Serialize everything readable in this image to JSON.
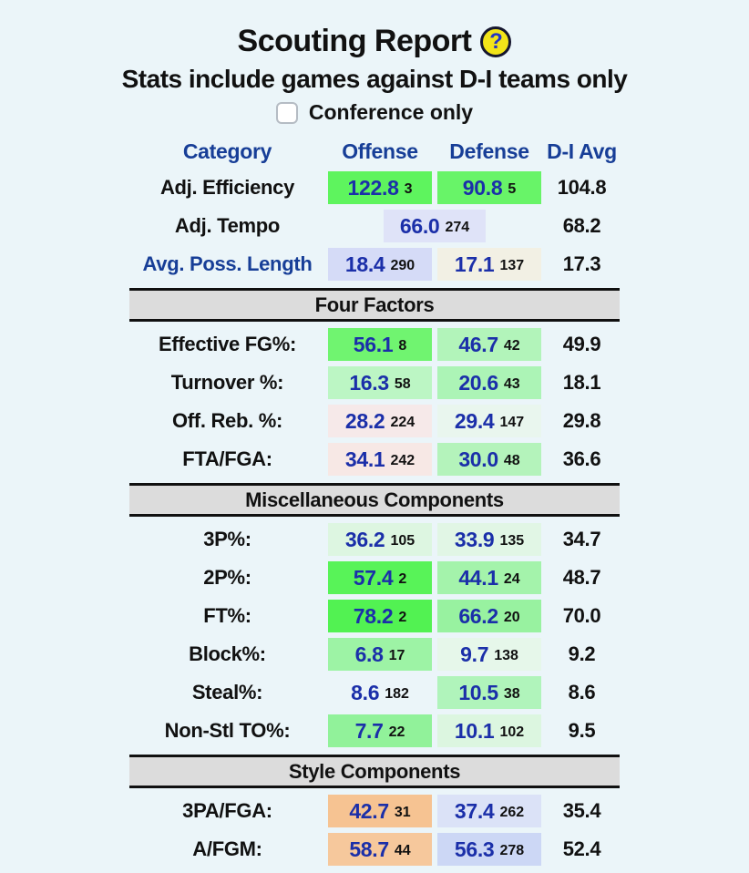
{
  "page": {
    "title": "Scouting Report",
    "help_icon_glyph": "?",
    "subtitle": "Stats include games against D-I teams only",
    "conference_checkbox": {
      "label": "Conference only",
      "checked": false
    }
  },
  "colors": {
    "page_bg": "#ebf5f9",
    "header_blue": "#173e97",
    "value_blue": "#1b2fa9",
    "section_bar_bg": "#dcdcdc",
    "good_green": "#5df35d",
    "bad_pink": "#f6e9e8",
    "high_orange": "#f6c594",
    "low_lavender": "#d8def7"
  },
  "table": {
    "headers": {
      "category": "Category",
      "offense": "Offense",
      "defense": "Defense",
      "avg": "D-I Avg"
    },
    "sections": [
      {
        "title": "",
        "rows": [
          {
            "label": "Adj. Efficiency",
            "link": false,
            "merged": false,
            "offense": {
              "value": "122.8",
              "rank": "3",
              "bg": "#5ef45e"
            },
            "defense": {
              "value": "90.8",
              "rank": "5",
              "bg": "#68f468"
            },
            "avg": "104.8"
          },
          {
            "label": "Adj. Tempo",
            "link": false,
            "merged": true,
            "offense": {
              "value": "66.0",
              "rank": "274",
              "bg": "#dfe3f8"
            },
            "avense": null,
            "avg": "68.2"
          },
          {
            "label": "Avg. Poss. Length",
            "link": true,
            "merged": false,
            "offense": {
              "value": "18.4",
              "rank": "290",
              "bg": "#d5dbf7"
            },
            "defense": {
              "value": "17.1",
              "rank": "137",
              "bg": "#f2f0e4"
            },
            "avg": "17.3"
          }
        ]
      },
      {
        "title": "Four Factors",
        "rows": [
          {
            "label": "Effective FG%:",
            "link": false,
            "merged": false,
            "offense": {
              "value": "56.1",
              "rank": "8",
              "bg": "#70f470"
            },
            "defense": {
              "value": "46.7",
              "rank": "42",
              "bg": "#b2f4ba"
            },
            "avg": "49.9"
          },
          {
            "label": "Turnover %:",
            "link": false,
            "merged": false,
            "offense": {
              "value": "16.3",
              "rank": "58",
              "bg": "#bcf6c4"
            },
            "defense": {
              "value": "20.6",
              "rank": "43",
              "bg": "#acf4b6"
            },
            "avg": "18.1"
          },
          {
            "label": "Off. Reb. %:",
            "link": false,
            "merged": false,
            "offense": {
              "value": "28.2",
              "rank": "224",
              "bg": "#f6e9e9"
            },
            "defense": {
              "value": "29.4",
              "rank": "147",
              "bg": "#e9f6ee"
            },
            "avg": "29.8"
          },
          {
            "label": "FTA/FGA:",
            "link": false,
            "merged": false,
            "offense": {
              "value": "34.1",
              "rank": "242",
              "bg": "#f7e8e5"
            },
            "defense": {
              "value": "30.0",
              "rank": "48",
              "bg": "#b4f3bb"
            },
            "avg": "36.6"
          }
        ]
      },
      {
        "title": "Miscellaneous Components",
        "rows": [
          {
            "label": "3P%:",
            "link": false,
            "merged": false,
            "offense": {
              "value": "36.2",
              "rank": "105",
              "bg": "#ddf6e1"
            },
            "defense": {
              "value": "33.9",
              "rank": "135",
              "bg": "#e1f6e5"
            },
            "avg": "34.7"
          },
          {
            "label": "2P%:",
            "link": false,
            "merged": false,
            "offense": {
              "value": "57.4",
              "rank": "2",
              "bg": "#58f358"
            },
            "defense": {
              "value": "44.1",
              "rank": "24",
              "bg": "#a4f3ab"
            },
            "avg": "48.7"
          },
          {
            "label": "FT%:",
            "link": false,
            "merged": false,
            "offense": {
              "value": "78.2",
              "rank": "2",
              "bg": "#52f252"
            },
            "defense": {
              "value": "66.2",
              "rank": "20",
              "bg": "#98f2a0"
            },
            "avg": "70.0"
          },
          {
            "label": "Block%:",
            "link": false,
            "merged": false,
            "offense": {
              "value": "6.8",
              "rank": "17",
              "bg": "#9df3a5"
            },
            "defense": {
              "value": "9.7",
              "rank": "138",
              "bg": "#e6f7ea"
            },
            "avg": "9.2"
          },
          {
            "label": "Steal%:",
            "link": false,
            "merged": false,
            "offense": {
              "value": "8.6",
              "rank": "182",
              "bg": ""
            },
            "defense": {
              "value": "10.5",
              "rank": "38",
              "bg": "#b0f4bb"
            },
            "avg": "8.6"
          },
          {
            "label": "Non-Stl TO%:",
            "link": false,
            "merged": false,
            "offense": {
              "value": "7.7",
              "rank": "22",
              "bg": "#91f29a"
            },
            "defense": {
              "value": "10.1",
              "rank": "102",
              "bg": "#dcf6e0"
            },
            "avg": "9.5"
          }
        ]
      },
      {
        "title": "Style Components",
        "rows": [
          {
            "label": "3PA/FGA:",
            "link": false,
            "merged": false,
            "offense": {
              "value": "42.7",
              "rank": "31",
              "bg": "#f6c392"
            },
            "defense": {
              "value": "37.4",
              "rank": "262",
              "bg": "#dbe2f7"
            },
            "avg": "35.4"
          },
          {
            "label": "A/FGM:",
            "link": false,
            "merged": false,
            "offense": {
              "value": "58.7",
              "rank": "44",
              "bg": "#f6c89c"
            },
            "defense": {
              "value": "56.3",
              "rank": "278",
              "bg": "#ccd7f5"
            },
            "avg": "52.4"
          }
        ]
      }
    ]
  }
}
